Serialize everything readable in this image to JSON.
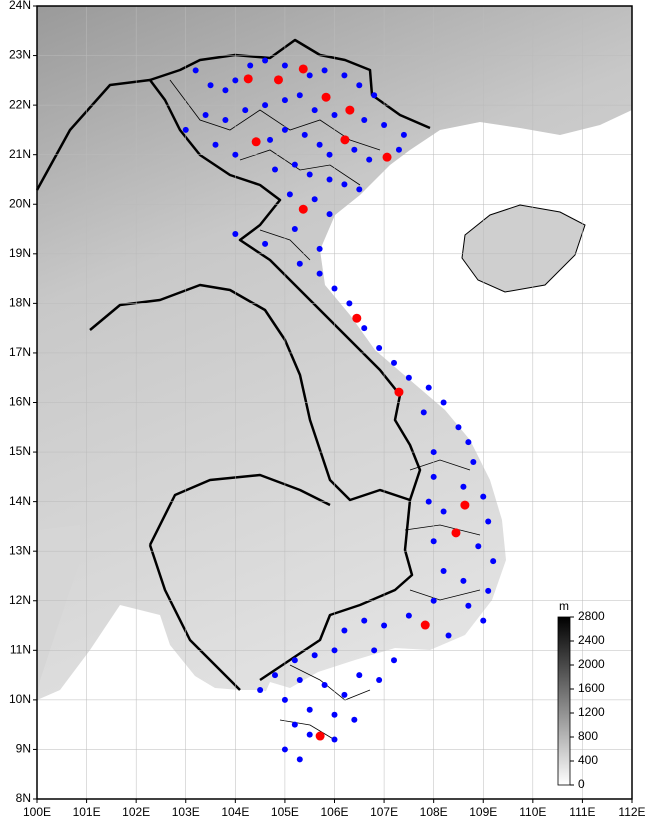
{
  "map": {
    "lon_ticks": [
      {
        "value": 100,
        "label": "100E"
      },
      {
        "value": 101,
        "label": "101E"
      },
      {
        "value": 102,
        "label": "102E"
      },
      {
        "value": 103,
        "label": "103E"
      },
      {
        "value": 104,
        "label": "104E"
      },
      {
        "value": 105,
        "label": "105E"
      },
      {
        "value": 106,
        "label": "106E"
      },
      {
        "value": 107,
        "label": "107E"
      },
      {
        "value": 108,
        "label": "108E"
      },
      {
        "value": 109,
        "label": "109E"
      },
      {
        "value": 110,
        "label": "110E"
      },
      {
        "value": 111,
        "label": "111E"
      },
      {
        "value": 112,
        "label": "112E"
      }
    ],
    "lat_ticks": [
      {
        "value": 8,
        "label": "8N"
      },
      {
        "value": 9,
        "label": "9N"
      },
      {
        "value": 10,
        "label": "10N"
      },
      {
        "value": 11,
        "label": "11N"
      },
      {
        "value": 12,
        "label": "12N"
      },
      {
        "value": 13,
        "label": "13N"
      },
      {
        "value": 14,
        "label": "14N"
      },
      {
        "value": 15,
        "label": "15N"
      },
      {
        "value": 16,
        "label": "16N"
      },
      {
        "value": 17,
        "label": "17N"
      },
      {
        "value": 18,
        "label": "18N"
      },
      {
        "value": 19,
        "label": "19N"
      },
      {
        "value": 20,
        "label": "20N"
      },
      {
        "value": 21,
        "label": "21N"
      },
      {
        "value": 22,
        "label": "22N"
      },
      {
        "value": 23,
        "label": "23N"
      },
      {
        "value": 24,
        "label": "24N"
      }
    ],
    "lonlim": [
      100,
      112
    ],
    "latlim": [
      8,
      24
    ],
    "colorbar": {
      "unit": "m",
      "lim": [
        0,
        2800
      ],
      "ticks": [
        0,
        400,
        800,
        1200,
        1600,
        2000,
        2400,
        2800
      ]
    },
    "red_color": "#ff0000",
    "blue_color": "#0000ff",
    "red_stations": [
      [
        104.26,
        22.53
      ],
      [
        104.87,
        22.51
      ],
      [
        105.37,
        22.73
      ],
      [
        105.83,
        22.16
      ],
      [
        106.31,
        21.9
      ],
      [
        104.42,
        21.26
      ],
      [
        106.21,
        21.3
      ],
      [
        107.06,
        20.95
      ],
      [
        105.37,
        19.9
      ],
      [
        106.45,
        17.7
      ],
      [
        107.3,
        16.21
      ],
      [
        108.63,
        13.93
      ],
      [
        108.45,
        13.37
      ],
      [
        107.83,
        11.51
      ],
      [
        105.71,
        9.27
      ]
    ],
    "blue_stations": [
      [
        103.2,
        22.7
      ],
      [
        103.5,
        22.4
      ],
      [
        103.8,
        22.3
      ],
      [
        104.0,
        22.5
      ],
      [
        104.3,
        22.8
      ],
      [
        104.6,
        22.9
      ],
      [
        105.0,
        22.8
      ],
      [
        105.5,
        22.6
      ],
      [
        105.8,
        22.7
      ],
      [
        106.2,
        22.6
      ],
      [
        106.5,
        22.4
      ],
      [
        106.8,
        22.2
      ],
      [
        103.0,
        21.5
      ],
      [
        103.4,
        21.8
      ],
      [
        103.8,
        21.7
      ],
      [
        104.2,
        21.9
      ],
      [
        104.6,
        22.0
      ],
      [
        105.0,
        22.1
      ],
      [
        105.3,
        22.2
      ],
      [
        105.6,
        21.9
      ],
      [
        106.0,
        21.8
      ],
      [
        106.6,
        21.7
      ],
      [
        107.0,
        21.6
      ],
      [
        107.4,
        21.4
      ],
      [
        103.6,
        21.2
      ],
      [
        104.0,
        21.0
      ],
      [
        104.7,
        21.3
      ],
      [
        105.0,
        21.5
      ],
      [
        105.4,
        21.4
      ],
      [
        105.7,
        21.2
      ],
      [
        105.9,
        21.0
      ],
      [
        106.4,
        21.1
      ],
      [
        106.7,
        20.9
      ],
      [
        107.3,
        21.1
      ],
      [
        104.8,
        20.7
      ],
      [
        105.2,
        20.8
      ],
      [
        105.5,
        20.6
      ],
      [
        105.9,
        20.5
      ],
      [
        106.2,
        20.4
      ],
      [
        106.5,
        20.3
      ],
      [
        105.1,
        20.2
      ],
      [
        105.6,
        20.1
      ],
      [
        105.9,
        19.8
      ],
      [
        104.0,
        19.4
      ],
      [
        104.6,
        19.2
      ],
      [
        105.2,
        19.5
      ],
      [
        105.7,
        19.1
      ],
      [
        105.3,
        18.8
      ],
      [
        105.7,
        18.6
      ],
      [
        106.0,
        18.3
      ],
      [
        106.3,
        18.0
      ],
      [
        106.6,
        17.5
      ],
      [
        106.9,
        17.1
      ],
      [
        107.2,
        16.8
      ],
      [
        107.5,
        16.5
      ],
      [
        107.9,
        16.3
      ],
      [
        108.2,
        16.0
      ],
      [
        107.8,
        15.8
      ],
      [
        108.5,
        15.5
      ],
      [
        108.7,
        15.2
      ],
      [
        108.0,
        15.0
      ],
      [
        108.8,
        14.8
      ],
      [
        108.0,
        14.5
      ],
      [
        108.6,
        14.3
      ],
      [
        109.0,
        14.1
      ],
      [
        107.9,
        14.0
      ],
      [
        108.2,
        13.8
      ],
      [
        109.1,
        13.6
      ],
      [
        108.0,
        13.2
      ],
      [
        108.9,
        13.1
      ],
      [
        109.2,
        12.8
      ],
      [
        108.2,
        12.6
      ],
      [
        108.6,
        12.4
      ],
      [
        109.1,
        12.2
      ],
      [
        108.0,
        12.0
      ],
      [
        108.7,
        11.9
      ],
      [
        109.0,
        11.6
      ],
      [
        107.5,
        11.7
      ],
      [
        108.3,
        11.3
      ],
      [
        107.0,
        11.5
      ],
      [
        106.6,
        11.6
      ],
      [
        106.2,
        11.4
      ],
      [
        106.8,
        11.0
      ],
      [
        107.2,
        10.8
      ],
      [
        106.0,
        11.0
      ],
      [
        105.6,
        10.9
      ],
      [
        105.2,
        10.8
      ],
      [
        106.5,
        10.5
      ],
      [
        106.9,
        10.4
      ],
      [
        104.8,
        10.5
      ],
      [
        105.3,
        10.4
      ],
      [
        105.8,
        10.3
      ],
      [
        106.2,
        10.1
      ],
      [
        104.5,
        10.2
      ],
      [
        105.0,
        10.0
      ],
      [
        105.5,
        9.8
      ],
      [
        106.0,
        9.7
      ],
      [
        106.4,
        9.6
      ],
      [
        105.2,
        9.5
      ],
      [
        105.5,
        9.3
      ],
      [
        106.0,
        9.2
      ],
      [
        105.0,
        9.0
      ],
      [
        105.3,
        8.8
      ]
    ]
  }
}
